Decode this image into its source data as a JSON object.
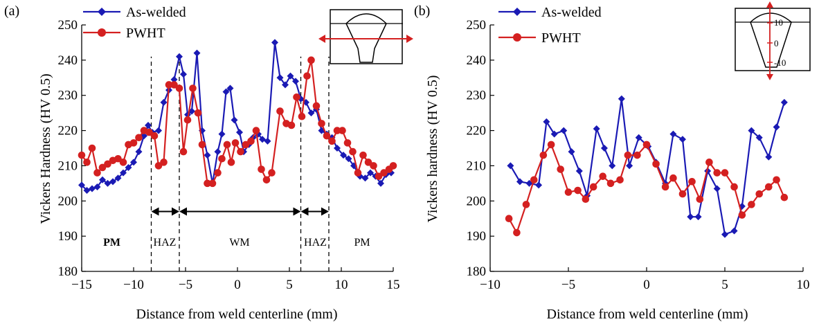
{
  "chart_data": [
    {
      "type": "line",
      "panel_label": "(a)",
      "xlabel": "Distance from weld centerline (mm)",
      "ylabel": "Vickers Hardness (HV 0.5)",
      "xlim": [
        -15,
        15
      ],
      "ylim": [
        180,
        250
      ],
      "xticks": [
        -15,
        -10,
        -5,
        0,
        5,
        10,
        15
      ],
      "xtick_labels": [
        "−15",
        "−10",
        "−5",
        "0",
        "5",
        "10",
        "15"
      ],
      "yticks": [
        180,
        190,
        200,
        210,
        220,
        230,
        240,
        250
      ],
      "ytick_labels": [
        "180",
        "190",
        "200",
        "210",
        "220",
        "230",
        "240",
        "250"
      ],
      "legend_position": "top-left",
      "series": [
        {
          "name": "As-welded",
          "color": "#1a1ab4",
          "marker": "diamond",
          "points": [
            [
              -15,
              204.5
            ],
            [
              -14.5,
              203
            ],
            [
              -14,
              203.5
            ],
            [
              -13.5,
              204
            ],
            [
              -13,
              206
            ],
            [
              -12.5,
              205
            ],
            [
              -12,
              205.5
            ],
            [
              -11.5,
              206.5
            ],
            [
              -11,
              208
            ],
            [
              -10.5,
              209.5
            ],
            [
              -10,
              211
            ],
            [
              -9.5,
              214
            ],
            [
              -9,
              218.5
            ],
            [
              -8.6,
              221.5
            ],
            [
              -8.2,
              219.5
            ],
            [
              -7.6,
              220
            ],
            [
              -7.1,
              228
            ],
            [
              -6.6,
              231.5
            ],
            [
              -6.1,
              234.5
            ],
            [
              -5.6,
              241
            ],
            [
              -5.2,
              236
            ],
            [
              -4.8,
              224.5
            ],
            [
              -4.4,
              225.5
            ],
            [
              -3.9,
              242
            ],
            [
              -3.4,
              220
            ],
            [
              -2.9,
              213
            ],
            [
              -2.4,
              205
            ],
            [
              -1.9,
              214
            ],
            [
              -1.5,
              219
            ],
            [
              -1.1,
              231
            ],
            [
              -0.7,
              232
            ],
            [
              -0.3,
              223
            ],
            [
              0.2,
              219.5
            ],
            [
              0.6,
              214
            ],
            [
              1.1,
              216
            ],
            [
              1.5,
              218
            ],
            [
              2,
              219
            ],
            [
              2.4,
              217.5
            ],
            [
              2.9,
              217
            ],
            [
              3.6,
              245
            ],
            [
              4.1,
              235
            ],
            [
              4.6,
              233
            ],
            [
              5.1,
              235.5
            ],
            [
              5.6,
              234
            ],
            [
              6.1,
              229
            ],
            [
              6.6,
              228
            ],
            [
              7.1,
              225
            ],
            [
              7.6,
              226
            ],
            [
              8.1,
              220
            ],
            [
              8.6,
              219
            ],
            [
              9.1,
              218
            ],
            [
              9.6,
              215
            ],
            [
              10.2,
              213
            ],
            [
              10.7,
              212
            ],
            [
              11.2,
              210
            ],
            [
              11.8,
              207
            ],
            [
              12.3,
              206.5
            ],
            [
              12.8,
              208
            ],
            [
              13.3,
              207
            ],
            [
              13.8,
              205
            ],
            [
              14.3,
              207.5
            ],
            [
              14.8,
              208
            ]
          ]
        },
        {
          "name": "PWHT",
          "color": "#d42020",
          "marker": "circle",
          "points": [
            [
              -15,
              213
            ],
            [
              -14.5,
              211
            ],
            [
              -14,
              215
            ],
            [
              -13.5,
              208
            ],
            [
              -13,
              209.5
            ],
            [
              -12.5,
              210.5
            ],
            [
              -12,
              211.5
            ],
            [
              -11.5,
              212
            ],
            [
              -11,
              211
            ],
            [
              -10.5,
              216
            ],
            [
              -10,
              216.5
            ],
            [
              -9.5,
              218
            ],
            [
              -9,
              220
            ],
            [
              -8.5,
              219.5
            ],
            [
              -8,
              218.5
            ],
            [
              -7.6,
              210
            ],
            [
              -7.1,
              211
            ],
            [
              -6.6,
              233
            ],
            [
              -6.1,
              233
            ],
            [
              -5.6,
              232
            ],
            [
              -5.2,
              214
            ],
            [
              -4.8,
              223
            ],
            [
              -4.3,
              232
            ],
            [
              -3.8,
              225
            ],
            [
              -3.4,
              216
            ],
            [
              -2.9,
              205
            ],
            [
              -2.4,
              205
            ],
            [
              -1.9,
              208
            ],
            [
              -1.5,
              212
            ],
            [
              -1,
              216
            ],
            [
              -0.6,
              211
            ],
            [
              -0.2,
              216.5
            ],
            [
              0.3,
              214
            ],
            [
              0.8,
              216
            ],
            [
              1.3,
              217
            ],
            [
              1.8,
              220
            ],
            [
              2.3,
              209
            ],
            [
              2.8,
              206
            ],
            [
              3.3,
              208
            ],
            [
              4.1,
              225.5
            ],
            [
              4.7,
              222
            ],
            [
              5.2,
              221.5
            ],
            [
              5.7,
              229.5
            ],
            [
              6.2,
              224
            ],
            [
              6.7,
              235.5
            ],
            [
              7.1,
              240
            ],
            [
              7.6,
              227
            ],
            [
              8.1,
              222
            ],
            [
              8.6,
              218.5
            ],
            [
              9.1,
              217
            ],
            [
              9.6,
              220
            ],
            [
              10.1,
              220
            ],
            [
              10.6,
              216.5
            ],
            [
              11.1,
              214
            ],
            [
              11.6,
              208
            ],
            [
              12.1,
              213
            ],
            [
              12.6,
              211
            ],
            [
              13.1,
              210
            ],
            [
              13.6,
              207
            ],
            [
              14.1,
              208
            ],
            [
              14.6,
              209
            ],
            [
              15,
              210
            ]
          ]
        }
      ],
      "vlines": [
        -8.3,
        -5.6,
        6.1,
        8.8
      ],
      "arrows": [
        {
          "from": -8.3,
          "to": -5.6,
          "y": 197
        },
        {
          "from": -5.6,
          "to": 6.1,
          "y": 197
        },
        {
          "from": 6.1,
          "to": 8.8,
          "y": 197
        }
      ],
      "region_labels": [
        {
          "text": "PM",
          "x": -12.1,
          "y": 188.5,
          "bold": true
        },
        {
          "text": "HAZ",
          "x": -7,
          "y": 188.5,
          "bold": false
        },
        {
          "text": "WM",
          "x": 0.2,
          "y": 188.5,
          "bold": false
        },
        {
          "text": "HAZ",
          "x": 7.5,
          "y": 188.5,
          "bold": false
        },
        {
          "text": "PM",
          "x": 12,
          "y": 188.5,
          "bold": false
        }
      ]
    },
    {
      "type": "line",
      "panel_label": "(b)",
      "xlabel": "Distance from weld centerline (mm)",
      "ylabel": "Vickers hardness (HV 0.5)",
      "xlim": [
        -10,
        10
      ],
      "ylim": [
        180,
        250
      ],
      "xticks": [
        -10,
        -5,
        0,
        5,
        10
      ],
      "xtick_labels": [
        "−10",
        "−5",
        "0",
        "5",
        "10"
      ],
      "yticks": [
        180,
        190,
        200,
        210,
        220,
        230,
        240,
        250
      ],
      "ytick_labels": [
        "180",
        "190",
        "200",
        "210",
        "220",
        "230",
        "240",
        "250"
      ],
      "legend_position": "top-left",
      "series": [
        {
          "name": "As-welded",
          "color": "#1a1ab4",
          "marker": "diamond",
          "points": [
            [
              -8.7,
              210
            ],
            [
              -8.1,
              205.5
            ],
            [
              -7.5,
              205
            ],
            [
              -6.9,
              204.5
            ],
            [
              -6.4,
              222.5
            ],
            [
              -5.9,
              219
            ],
            [
              -5.3,
              220
            ],
            [
              -4.8,
              214
            ],
            [
              -4.3,
              208.5
            ],
            [
              -3.8,
              201.5
            ],
            [
              -3.2,
              220.5
            ],
            [
              -2.7,
              215
            ],
            [
              -2.2,
              210
            ],
            [
              -1.6,
              229
            ],
            [
              -1.1,
              210
            ],
            [
              -0.5,
              218
            ],
            [
              0.1,
              215.5
            ],
            [
              0.6,
              211
            ],
            [
              1.2,
              205
            ],
            [
              1.7,
              219
            ],
            [
              2.3,
              217.5
            ],
            [
              2.8,
              195.5
            ],
            [
              3.3,
              195.5
            ],
            [
              3.9,
              208.5
            ],
            [
              4.5,
              203.5
            ],
            [
              5,
              190.5
            ],
            [
              5.6,
              191.5
            ],
            [
              6.1,
              198.5
            ],
            [
              6.7,
              220
            ],
            [
              7.2,
              218
            ],
            [
              7.8,
              212.5
            ],
            [
              8.3,
              221
            ],
            [
              8.8,
              228
            ]
          ]
        },
        {
          "name": "PWHT",
          "color": "#d42020",
          "marker": "circle",
          "points": [
            [
              -8.8,
              195
            ],
            [
              -8.3,
              191
            ],
            [
              -7.7,
              199
            ],
            [
              -7.2,
              206
            ],
            [
              -6.6,
              213
            ],
            [
              -6.1,
              216
            ],
            [
              -5.5,
              209
            ],
            [
              -5,
              202.5
            ],
            [
              -4.4,
              203
            ],
            [
              -3.9,
              200.5
            ],
            [
              -3.4,
              204
            ],
            [
              -2.8,
              207
            ],
            [
              -2.3,
              205
            ],
            [
              -1.7,
              206
            ],
            [
              -1.2,
              213
            ],
            [
              -0.6,
              213
            ],
            [
              0,
              216
            ],
            [
              0.6,
              210.5
            ],
            [
              1.2,
              204
            ],
            [
              1.7,
              206.5
            ],
            [
              2.3,
              202
            ],
            [
              2.9,
              205.5
            ],
            [
              3.4,
              200.5
            ],
            [
              4,
              211
            ],
            [
              4.5,
              208
            ],
            [
              5,
              208
            ],
            [
              5.6,
              204
            ],
            [
              6.1,
              196
            ],
            [
              6.7,
              199
            ],
            [
              7.2,
              202
            ],
            [
              7.8,
              204
            ],
            [
              8.3,
              206
            ],
            [
              8.8,
              201
            ]
          ]
        }
      ]
    }
  ],
  "legend_labels": [
    "As-welded",
    "PWHT"
  ],
  "inset_b_ticks": [
    "10",
    "0",
    "-10"
  ]
}
